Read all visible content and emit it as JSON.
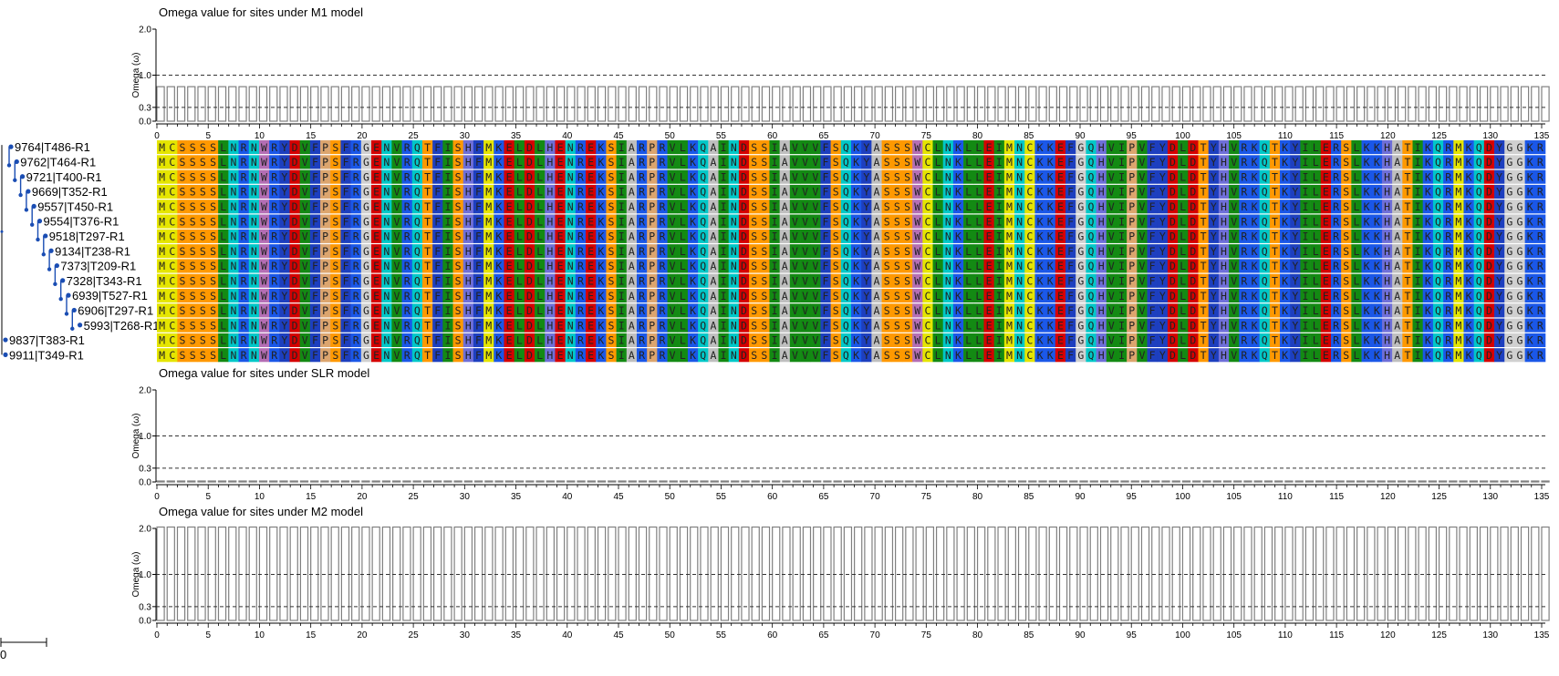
{
  "panels": [
    {
      "title": "Omega value for sites under M1 model",
      "ylabel": "Omega (ω)",
      "ytick_labels": [
        "2.0",
        "1.0",
        "0.3",
        "0.0"
      ],
      "chart_data": {
        "type": "bar",
        "title": "Omega value for sites under M1 model",
        "ylabel": "Omega (ω)",
        "xlabel": "",
        "ylim": [
          0,
          2
        ],
        "reference_lines": [
          1.0,
          0.3
        ],
        "sites": 136,
        "value_all_sites": 0.75,
        "xticks": [
          0,
          5,
          10,
          15,
          20,
          25,
          30,
          35,
          40,
          45,
          50,
          55,
          60,
          65,
          70,
          75,
          80,
          85,
          90,
          95,
          100,
          105,
          110,
          115,
          120,
          125,
          130,
          135
        ]
      }
    },
    {
      "title": "Omega value for sites under SLR model",
      "ylabel": "Omega (ω)",
      "ytick_labels": [
        "2.0",
        "1.0",
        "0.3",
        "0.0"
      ],
      "chart_data": {
        "type": "bar",
        "title": "Omega value for sites under SLR model",
        "ylabel": "Omega (ω)",
        "xlabel": "",
        "ylim": [
          0,
          2
        ],
        "reference_lines": [
          1.0,
          0.3
        ],
        "sites": 136,
        "value_all_sites": 0.02,
        "xticks": [
          0,
          5,
          10,
          15,
          20,
          25,
          30,
          35,
          40,
          45,
          50,
          55,
          60,
          65,
          70,
          75,
          80,
          85,
          90,
          95,
          100,
          105,
          110,
          115,
          120,
          125,
          130,
          135
        ]
      }
    },
    {
      "title": "Omega value for sites under M2 model",
      "ylabel": "Omega (ω)",
      "ytick_labels": [
        "2.0",
        "1.0",
        "0.3",
        "0.0"
      ],
      "chart_data": {
        "type": "bar",
        "title": "Omega value for sites under M2 model",
        "ylabel": "Omega (ω)",
        "xlabel": "",
        "ylim": [
          0,
          2
        ],
        "reference_lines": [
          1.0,
          0.3
        ],
        "sites": 136,
        "value_all_sites": 2.05,
        "xticks": [
          0,
          5,
          10,
          15,
          20,
          25,
          30,
          35,
          40,
          45,
          50,
          55,
          60,
          65,
          70,
          75,
          80,
          85,
          90,
          95,
          100,
          105,
          110,
          115,
          120,
          125,
          130,
          135
        ]
      }
    }
  ],
  "tree": {
    "leaves": [
      "9764|T486-R1",
      "9762|T464-R1",
      "9721|T400-R1",
      "9669|T352-R1",
      "9557|T450-R1",
      "9554|T376-R1",
      "9518|T297-R1",
      "9134|T238-R1",
      "7373|T209-R1",
      "7328|T343-R1",
      "6939|T527-R1",
      "6906|T297-R1",
      "5993|T268-R1",
      "9837|T383-R1",
      "9911|T349-R1"
    ],
    "scale_label": "0",
    "branch_color": "#1a4db3"
  },
  "alignment": {
    "sequence": "MCSSSSLNRNWRYDVFPSFRGENVRQTFISHFMKELDLHENREKSIARPRVLKQAINDSSIAVVVFSQKYASSSWCLNKLLEIMNCKKEFGQHVIPVFYDLDTYHVRKQTKYILERSLKKHATIKQRMKQDYGGKR",
    "row_count": 15,
    "colors": {
      "A": "#bfbfbf",
      "C": "#e5e500",
      "D": "#d50000",
      "E": "#d50000",
      "F": "#1d3fbf",
      "G": "#d0d0d0",
      "H": "#6f6fd8",
      "I": "#138a13",
      "K": "#1a57e8",
      "L": "#138a13",
      "M": "#e5e500",
      "N": "#00c8c8",
      "P": "#dca56e",
      "Q": "#00c8c8",
      "R": "#1a57e8",
      "S": "#ff9900",
      "T": "#ff9900",
      "V": "#138a13",
      "W": "#b46eb4",
      "Y": "#1d3fbf"
    }
  },
  "colors": {
    "axis": "#000000",
    "bar_stroke": "#808080",
    "reference_line": "#333333"
  }
}
